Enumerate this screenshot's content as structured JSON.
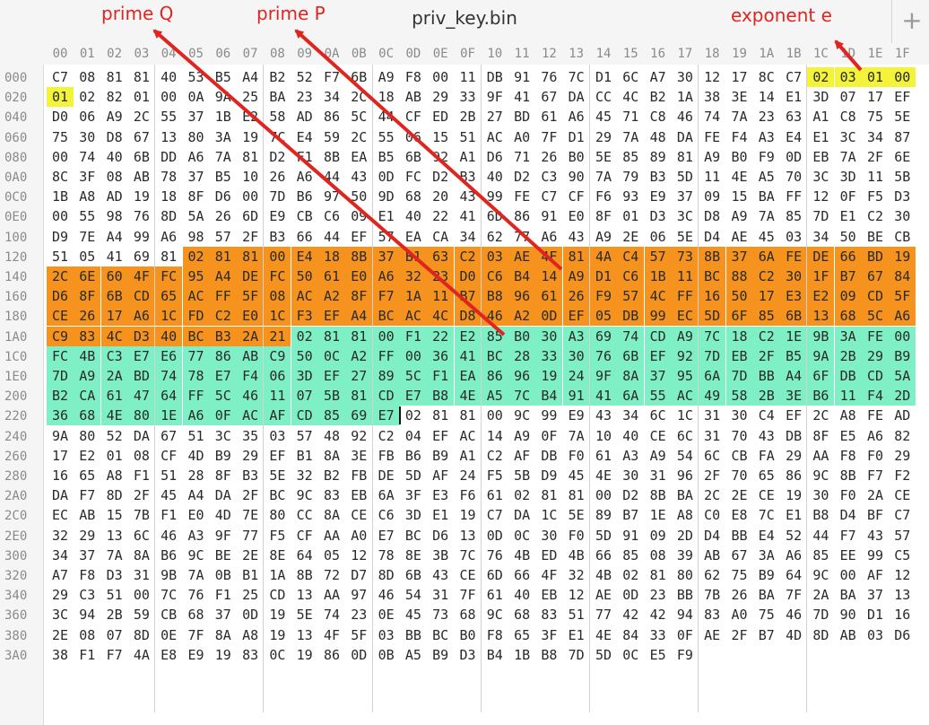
{
  "window": {
    "title": "priv_key.bin",
    "new_tab_label": "+"
  },
  "annotations": {
    "prime_q": "prime Q",
    "prime_p": "prime P",
    "exponent_e": "exponent e"
  },
  "colors": {
    "yellow_highlight": "#f3f33a",
    "orange_highlight": "#f5931e",
    "teal_highlight": "#7ff0c6",
    "annotation_red": "#e0241f"
  },
  "column_headers": [
    "00",
    "01",
    "02",
    "03",
    "04",
    "05",
    "06",
    "07",
    "08",
    "09",
    "0A",
    "0B",
    "0C",
    "0D",
    "0E",
    "0F",
    "10",
    "11",
    "12",
    "13",
    "14",
    "15",
    "16",
    "17",
    "18",
    "19",
    "1A",
    "1B",
    "1C",
    "1D",
    "1E",
    "1F"
  ],
  "row_offsets": [
    "000",
    "020",
    "040",
    "060",
    "080",
    "0A0",
    "0C0",
    "0E0",
    "100",
    "120",
    "140",
    "160",
    "180",
    "1A0",
    "1C0",
    "1E0",
    "200",
    "220",
    "240",
    "260",
    "280",
    "2A0",
    "2C0",
    "2E0",
    "300",
    "320",
    "340",
    "360",
    "380",
    "3A0"
  ],
  "rows": [
    "C7 08 81 81 40 53 B5 A4 B2 52 F7 6B A9 F8 00 11 DB 91 76 7C D1 6C A7 30 12 17 8C C7 02 03 01 00",
    "01 02 82 01 00 0A 9A 25 BA 23 34 2C 18 AB 29 33 9F 41 67 DA CC 4C B2 1A 38 3E 14 E1 3D 07 17 EF",
    "D0 06 A9 2C 55 37 1B E2 58 AD 86 5C 44 CF ED 2B 27 BD 61 A6 45 71 C8 46 74 7A 23 63 A1 C8 75 5E",
    "75 30 D8 67 13 80 3A 19 7C E4 59 2C 55 06 15 51 AC A0 7F D1 29 7A 48 DA FE F4 A3 E4 E1 3C 34 87",
    "00 74 40 6B DD A6 7A 81 D2 F1 8B EA B5 6B 92 A1 D6 71 26 B0 5E 85 89 81 A9 B0 F9 0D EB 7A 2F 6E",
    "8C 3F 08 AB 78 37 B5 10 26 A6 44 43 0D FC D2 B3 40 D2 C3 90 7A 79 B3 5D 11 4E A5 70 3C 3D 11 5B",
    "1B A8 AD 19 18 8F D6 00 7D B6 97 50 9D 68 20 43 99 FE C7 CF F6 93 E9 37 09 15 BA FF 12 0F F5 D3",
    "00 55 98 76 8D 5A 26 6D E9 CB C6 09 E1 40 22 41 6D 86 91 E0 8F 01 D3 3C D8 A9 7A 85 7D E1 C2 30",
    "D9 7E A4 99 A6 98 57 2F B3 66 44 EF 57 EA CA 34 62 77 A6 43 A9 2E 06 5E D4 AE 45 03 34 50 BE CB",
    "51 05 41 69 81 02 81 81 00 E4 18 8B 37 B1 63 C2 03 AE 4F 81 4A C4 57 73 8B 37 6A FE DE 66 BD 19",
    "2C 6E 60 4F FC 95 A4 DE FC 50 61 E0 A6 32 23 D0 C6 B4 14 A9 D1 C6 1B 11 BC 88 C2 30 1F B7 67 84",
    "D6 8F 6B CD 65 AC FF 5F 08 AC A2 8F F7 1A 11 B7 B8 96 61 26 F9 57 4C FF 16 50 17 E3 E2 09 CD 5F",
    "CE 26 17 A6 1C FD C2 E0 1C F3 EF A4 BC AC 4C D8 46 A2 0D EF 05 DB 99 EC 5D 6F 85 6B 13 68 5C A6",
    "C9 83 4C D3 40 BC B3 2A 21 02 81 81 00 F1 22 E2 85 B0 30 A3 69 74 CD A9 7C 18 C2 1E 9B 3A FE 00",
    "FC 4B C3 E7 E6 77 86 AB C9 50 0C A2 FF 00 36 41 BC 28 33 30 76 6B EF 92 7D EB 2F B5 9A 2B 29 B9",
    "7D A9 2A BD 74 78 E7 F4 06 3D EF 27 89 5C F1 EA 86 96 19 24 9F 8A 37 95 6A 7D BB A4 6F DB CD 5A",
    "B2 CA 61 47 64 FF 5C 46 11 07 5B 81 CD E7 B8 4E A5 7C B4 91 41 6A 55 AC 49 58 2B 3E B6 11 F4 2D",
    "36 68 4E 80 1E A6 0F AC AF CD 85 69 E7 02 81 81 00 9C 99 E9 43 34 6C 1C 31 30 C4 EF 2C A8 FE AD",
    "9A 80 52 DA 67 51 3C 35 03 57 48 92 C2 04 EF AC 14 A9 0F 7A 10 40 CE 6C 31 70 43 DB 8F E5 A6 82",
    "17 E2 01 08 CF 4D B9 29 EF B1 8A 3E FB B6 B9 A1 C2 AF DB F0 61 A3 A9 54 6C CB FA 29 AA F8 F0 29",
    "16 65 A8 F1 51 28 8F B3 5E 32 B2 FB DE 5D AF 24 F5 5B D9 45 4E 30 31 96 2F 70 65 86 9C 8B F7 F2",
    "DA F7 8D 2F 45 A4 DA 2F BC 9C 83 EB 6A 3F E3 F6 61 02 81 81 00 D2 8B BA 2C 2E CE 19 30 F0 2A CE",
    "EC AB 15 7B F1 E0 4D 7E 80 CC 8A CE C6 3D E1 19 C7 DA 1C 5E 89 B7 1E A8 C0 E8 7C E1 B8 D4 BF C7",
    "32 29 13 6C 46 A3 9F 77 F5 CF AA A0 E7 BC D6 13 0D 0C 30 F0 5D 91 09 2D D4 BB E4 52 44 F7 43 57",
    "34 37 7A 8A B6 9C BE 2E 8E 64 05 12 78 8E 3B 7C 76 4B ED 4B 66 85 08 39 AB 67 3A A6 85 EE 99 C5",
    "A7 F8 D3 31 9B 7A 0B B1 1A 8B 72 D7 8D 6B 43 CE 6D 66 4F 32 4B 02 81 80 62 75 B9 64 9C 00 AF 12",
    "29 C3 51 00 7C 76 F1 25 CD 13 AA 97 46 54 31 7F 61 40 EB 12 AE 0D 23 BB 7B 26 BA 7F 2A BA 37 13",
    "3C 94 2B 59 CB 68 37 0D 19 5E 74 23 0E 45 73 68 9C 68 83 51 77 42 42 94 83 A0 75 46 7D 90 D1 16",
    "2E 08 07 8D 0E 7F 8A A8 19 13 4F 5F 03 BB BC B0 F8 65 3F E1 4E 84 33 0F AE 2F B7 4D 8D AB 03 D6",
    "38 F1 F7 4A E8 E9 19 83 0C 19 86 0D 0B A5 B9 D3 B4 1B B8 7D 5D 0C E5 F9"
  ]
}
